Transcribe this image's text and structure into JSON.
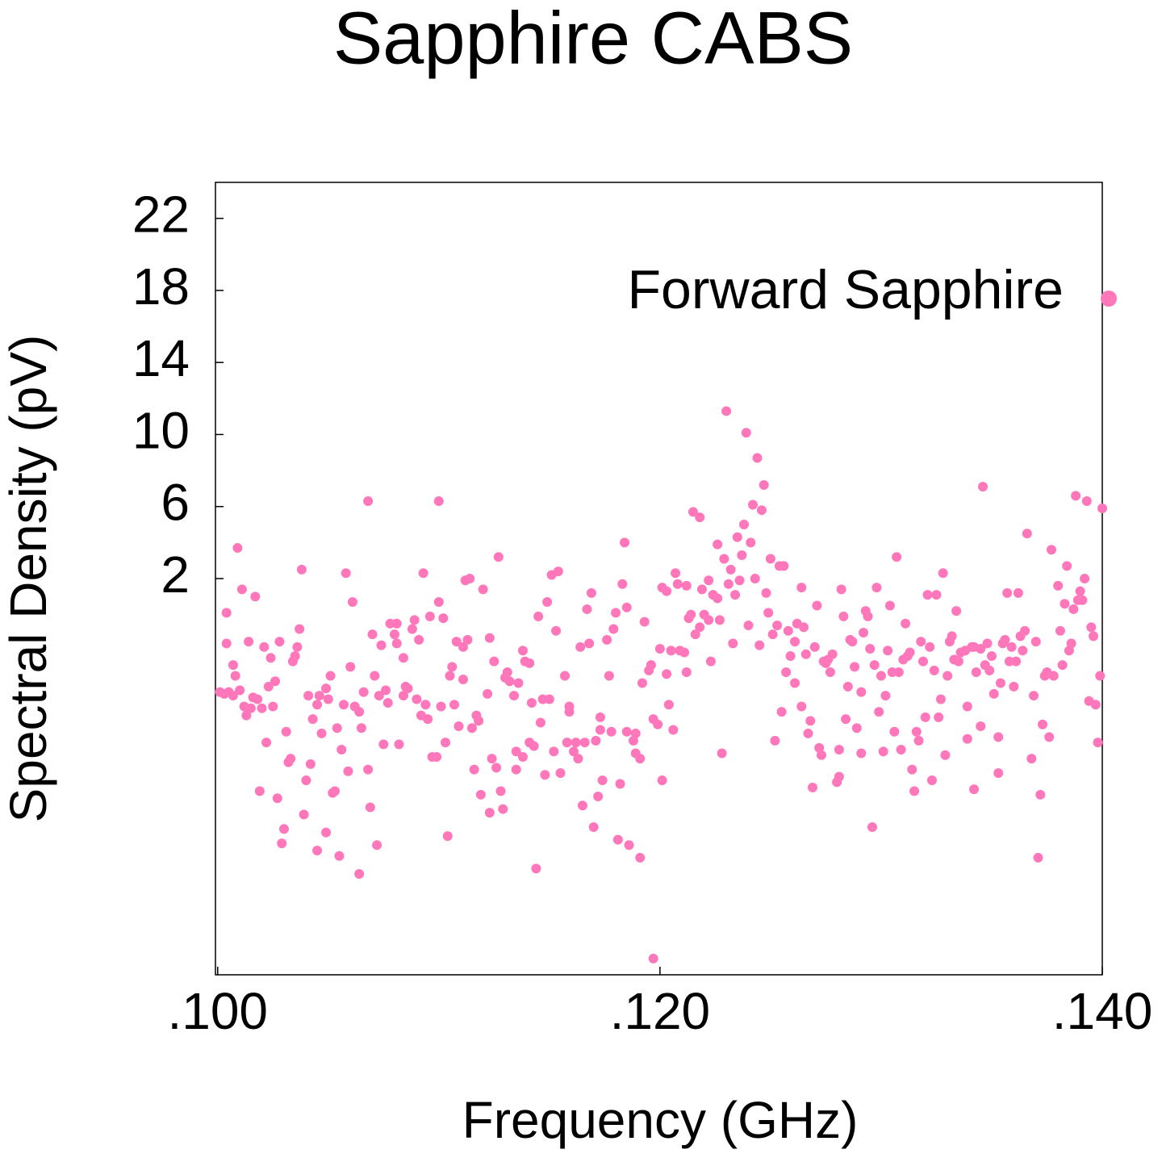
{
  "chart_data": {
    "type": "scatter",
    "title": "Sapphire CABS",
    "x_label": "Frequency (GHz)",
    "y_label": "Spectral Density (pV)",
    "xlim": [
      0.0999,
      0.14
    ],
    "ylim": [
      -20,
      24
    ],
    "xticks": [
      {
        "value": 0.1,
        "label": ".100"
      },
      {
        "value": 0.12,
        "label": ".120"
      },
      {
        "value": 0.14,
        "label": ".140"
      }
    ],
    "yticks": [
      2,
      6,
      10,
      14,
      18,
      22
    ],
    "legend": "upper right",
    "x": [
      0.1001,
      0.1003,
      0.1005,
      0.1007,
      0.1004,
      0.1004,
      0.1007,
      0.1008,
      0.1009,
      0.101,
      0.1011,
      0.1012,
      0.1013,
      0.1014,
      0.1015,
      0.1016,
      0.1017,
      0.1018,
      0.1019,
      0.102,
      0.1021,
      0.1022,
      0.1023,
      0.1024,
      0.1025,
      0.1026,
      0.1027,
      0.1028,
      0.1029,
      0.103,
      0.1031,
      0.1032,
      0.1033,
      0.1034,
      0.1035,
      0.1036,
      0.1037,
      0.1038,
      0.1039,
      0.104,
      0.1041,
      0.1042,
      0.1043,
      0.1045,
      0.1045,
      0.1046,
      0.1047,
      0.1049,
      0.1049,
      0.105,
      0.1051,
      0.1052,
      0.1053,
      0.1054,
      0.1055,
      0.1056,
      0.1057,
      0.1058,
      0.1059,
      0.106,
      0.1061,
      0.1062,
      0.1064,
      0.1064,
      0.1065,
      0.1066,
      0.1068,
      0.1068,
      0.1069,
      0.107,
      0.1071,
      0.1072,
      0.1073,
      0.1074,
      0.1075,
      0.1076,
      0.1077,
      0.1078,
      0.108,
      0.1081,
      0.1081,
      0.1082,
      0.1084,
      0.1084,
      0.1085,
      0.1086,
      0.1088,
      0.1089,
      0.109,
      0.1091,
      0.1092,
      0.1093,
      0.1094,
      0.1095,
      0.1096,
      0.1097,
      0.1099,
      0.11,
      0.11,
      0.1101,
      0.1102,
      0.1103,
      0.1104,
      0.1105,
      0.1106,
      0.1107,
      0.1108,
      0.1109,
      0.1111,
      0.1111,
      0.1112,
      0.1113,
      0.1114,
      0.1115,
      0.1116,
      0.1117,
      0.1118,
      0.1119,
      0.112,
      0.1122,
      0.1123,
      0.1123,
      0.1124,
      0.1125,
      0.1126,
      0.1127,
      0.1128,
      0.1129,
      0.113,
      0.1131,
      0.1132,
      0.1134,
      0.1135,
      0.1135,
      0.1136,
      0.1138,
      0.1138,
      0.1139,
      0.1141,
      0.1141,
      0.1142,
      0.1143,
      0.1144,
      0.1145,
      0.1146,
      0.1147,
      0.1148,
      0.1149,
      0.115,
      0.1151,
      0.1152,
      0.1153,
      0.1154,
      0.1155,
      0.1157,
      0.1158,
      0.1159,
      0.1159,
      0.1161,
      0.1162,
      0.1163,
      0.1164,
      0.1165,
      0.1166,
      0.1167,
      0.1168,
      0.1169,
      0.117,
      0.1171,
      0.1172,
      0.1173,
      0.1173,
      0.1174,
      0.1176,
      0.1177,
      0.1178,
      0.1179,
      0.118,
      0.1181,
      0.1182,
      0.1183,
      0.1184,
      0.1185,
      0.1185,
      0.1186,
      0.1188,
      0.1189,
      0.1189,
      0.1191,
      0.1191,
      0.1192,
      0.1193,
      0.1195,
      0.1196,
      0.1197,
      0.1197,
      0.1199,
      0.12,
      0.1201,
      0.1201,
      0.1203,
      0.1203,
      0.1204,
      0.1205,
      0.1206,
      0.1207,
      0.1208,
      0.1209,
      0.1211,
      0.1212,
      0.1212,
      0.1213,
      0.1214,
      0.1215,
      0.1216,
      0.1218,
      0.1218,
      0.1219,
      0.122,
      0.1222,
      0.1222,
      0.1223,
      0.1224,
      0.1226,
      0.1226,
      0.1227,
      0.1228,
      0.1229,
      0.123,
      0.1231,
      0.1232,
      0.1233,
      0.1234,
      0.1235,
      0.1236,
      0.1237,
      0.1238,
      0.1239,
      0.124,
      0.1241,
      0.1242,
      0.1243,
      0.1244,
      0.1245,
      0.1246,
      0.1247,
      0.1248,
      0.1249,
      0.125,
      0.1251,
      0.1252,
      0.1253,
      0.1254,
      0.1255,
      0.1256,
      0.1257,
      0.1258,
      0.1259,
      0.1261,
      0.1261,
      0.1262,
      0.1264,
      0.1264,
      0.1265,
      0.1266,
      0.1267,
      0.1268,
      0.1269,
      0.127,
      0.1271,
      0.1272,
      0.1273,
      0.1274,
      0.1275,
      0.1276,
      0.1277,
      0.1278,
      0.128,
      0.1281,
      0.1281,
      0.1282,
      0.1283,
      0.1284,
      0.1285,
      0.1286,
      0.1287,
      0.1288,
      0.1289,
      0.1291,
      0.1291,
      0.1292,
      0.1293,
      0.1294,
      0.1295,
      0.1296,
      0.1297,
      0.1298,
      0.1299,
      0.13,
      0.1301,
      0.1302,
      0.1303,
      0.1304,
      0.1305,
      0.1306,
      0.1307,
      0.1308,
      0.1309,
      0.131,
      0.1311,
      0.1312,
      0.1313,
      0.1314,
      0.1315,
      0.1316,
      0.1317,
      0.1318,
      0.1319,
      0.132,
      0.1321,
      0.1322,
      0.1323,
      0.1324,
      0.1325,
      0.1326,
      0.1327,
      0.1328,
      0.1329,
      0.133,
      0.1331,
      0.1332,
      0.1333,
      0.1334,
      0.1335,
      0.1336,
      0.1338,
      0.1339,
      0.1339,
      0.1341,
      0.1342,
      0.1342,
      0.1343,
      0.1345,
      0.1345,
      0.1346,
      0.1347,
      0.1348,
      0.1349,
      0.135,
      0.1351,
      0.1353,
      0.1353,
      0.1354,
      0.1355,
      0.1356,
      0.1357,
      0.1358,
      0.1359,
      0.136,
      0.1361,
      0.1362,
      0.1363,
      0.1364,
      0.1365,
      0.1366,
      0.1368,
      0.1369,
      0.137,
      0.1371,
      0.1372,
      0.1373,
      0.1374,
      0.1375,
      0.1376,
      0.1377,
      0.1378,
      0.138,
      0.1381,
      0.1382,
      0.1383,
      0.1384,
      0.1385,
      0.1386,
      0.1387,
      0.1388,
      0.1389,
      0.139,
      0.1391,
      0.1392,
      0.1393,
      0.1394,
      0.1395,
      0.1396,
      0.1397,
      0.1398,
      0.1399,
      0.14
    ],
    "series": [
      {
        "name": "Forward Sapphire",
        "color": "#ff77bb",
        "values": [
          -4.3,
          -4.4,
          -4.3,
          -4.5,
          -1.6,
          0.1,
          -2.8,
          -3.4,
          3.7,
          -4.2,
          1.4,
          -5.1,
          -5.6,
          -1.5,
          -5.2,
          -4.6,
          1.0,
          -4.7,
          -9.8,
          -5.2,
          -1.8,
          -7.1,
          -4.0,
          -2.4,
          -5.1,
          -3.7,
          -10.2,
          -1.5,
          -12.7,
          -11.9,
          -6.5,
          -8.2,
          -8.0,
          -2.6,
          -2.3,
          -1.8,
          -0.8,
          2.5,
          -11.1,
          -9.2,
          -4.5,
          -8.3,
          -5.8,
          -5.0,
          -13.1,
          -4.5,
          -6.6,
          -4.1,
          -12.1,
          -4.7,
          -3.4,
          -9.9,
          -9.8,
          -6.3,
          -13.4,
          -7.5,
          -5.0,
          2.3,
          -8.7,
          -2.9,
          0.7,
          -5.1,
          -5.4,
          -14.4,
          -6.3,
          -4.3,
          -8.6,
          6.3,
          -10.7,
          -1.1,
          -3.4,
          -12.8,
          -4.5,
          -1.7,
          -7.2,
          -4.2,
          -4.9,
          -0.5,
          -1.1,
          -1.6,
          -0.5,
          -7.2,
          -4.5,
          -2.4,
          -4.0,
          -4.1,
          -0.8,
          -0.3,
          -4.7,
          -1.4,
          -5.6,
          2.3,
          -5.0,
          -5.8,
          -0.1,
          -7.9,
          -7.9,
          0.7,
          6.3,
          -5.1,
          -0.2,
          -7.1,
          -12.3,
          -3.4,
          -2.9,
          -5.0,
          -1.5,
          -6.2,
          -3.6,
          -1.8,
          1.9,
          -1.4,
          2.0,
          -6.3,
          -8.6,
          -5.6,
          -5.9,
          -10.0,
          1.4,
          -4.4,
          -1.3,
          -11.0,
          -8.0,
          -2.6,
          -8.5,
          3.2,
          -9.8,
          -10.8,
          -3.5,
          -3.2,
          -3.7,
          -4.5,
          -8.6,
          -7.6,
          -3.8,
          -2.0,
          -7.9,
          -2.6,
          -7.1,
          -2.7,
          -4.9,
          -7.3,
          -14.1,
          -0.1,
          -6.0,
          -4.7,
          -8.9,
          0.7,
          -4.7,
          2.2,
          -7.6,
          -0.9,
          2.4,
          -8.8,
          -3.4,
          -7.1,
          -5.1,
          -5.4,
          -7.6,
          -7.1,
          -8.0,
          -1.8,
          -10.6,
          -7.1,
          0.3,
          -1.6,
          1.2,
          -11.8,
          -7.0,
          -10.1,
          -6.4,
          -5.7,
          -9.2,
          -1.4,
          -3.4,
          -6.5,
          -0.8,
          0.1,
          -12.5,
          -9.4,
          1.7,
          4.0,
          -6.5,
          0.4,
          -12.8,
          -7.0,
          -7.7,
          -6.6,
          -8.0,
          -13.5,
          -3.8,
          -0.4,
          -3.1,
          -2.8,
          -5.8,
          -19.1,
          -6.1,
          -1.9,
          -9.2,
          1.5,
          -3.3,
          1.3,
          -5.0,
          -2.0,
          -6.4,
          2.3,
          1.7,
          -2.0,
          -2.1,
          1.6,
          -3.2,
          -0.2,
          0.0,
          5.7,
          -1.1,
          -0.7,
          5.4,
          1.4,
          0.0,
          -0.3,
          1.9,
          -2.6,
          1.1,
          0.9,
          3.9,
          -0.3,
          -7.7,
          3.1,
          11.3,
          1.7,
          2.5,
          -1.6,
          1.1,
          4.3,
          1.9,
          3.3,
          5.0,
          10.1,
          -0.6,
          4.0,
          6.1,
          2.0,
          8.7,
          -1.7,
          5.8,
          7.2,
          1.2,
          0.1,
          3.1,
          -1.1,
          -7.0,
          -0.6,
          2.7,
          -5.4,
          2.7,
          -3.2,
          -0.9,
          -2.3,
          -1.5,
          -3.8,
          -0.5,
          1.5,
          -5.1,
          -0.7,
          -2.2,
          -6.6,
          -5.9,
          -9.6,
          -1.8,
          0.5,
          -7.4,
          -7.8,
          -2.6,
          -2.7,
          -2.5,
          -3.2,
          -2.2,
          -9.3,
          -9.0,
          -7.5,
          1.4,
          -0.1,
          -5.8,
          -4.0,
          -1.4,
          -1.5,
          -2.9,
          -6.3,
          -7.7,
          -4.3,
          -1.0,
          0.2,
          -0.1,
          -1.9,
          -11.8,
          -2.8,
          1.5,
          -5.4,
          -3.4,
          -7.6,
          -4.5,
          -2.0,
          0.5,
          -3.2,
          -6.5,
          3.2,
          -3.2,
          -7.5,
          -2.5,
          -0.5,
          -2.3,
          -2.1,
          -8.6,
          -9.8,
          -6.5,
          -7.0,
          -1.5,
          -2.6,
          -5.7,
          1.1,
          -1.8,
          -9.2,
          -3.1,
          1.1,
          -5.7,
          -4.7,
          2.3,
          -7.8,
          -3.4,
          -1.5,
          -1.2,
          -2.5,
          0.2,
          -2.6,
          -2.1,
          -2.0,
          -6.9,
          -5.1,
          -1.8,
          -1.8,
          -9.7,
          -3.2,
          -1.9,
          -6.2,
          7.1,
          -2.8,
          -1.6,
          -3.1,
          -2.3,
          -4.4,
          -8.8,
          -6.8,
          -3.8,
          -1.6,
          -1.4,
          1.2,
          -2.6,
          -1.8,
          -4.0,
          -2.6,
          1.2,
          -1.2,
          -2.0,
          -0.9,
          4.5,
          -8.0,
          -4.5,
          -1.5,
          -13.5,
          -10.0,
          -6.1,
          -3.4,
          -3.2,
          -6.8,
          3.6,
          -3.4,
          1.6,
          -0.9,
          -2.8,
          0.6,
          2.7,
          -2.0,
          -1.6,
          0.3,
          6.6,
          0.8,
          1.3,
          0.8,
          2.0,
          6.3,
          -4.8,
          -0.7,
          -1.2,
          -5.0,
          -7.1,
          -3.4,
          5.9
        ]
      }
    ]
  }
}
